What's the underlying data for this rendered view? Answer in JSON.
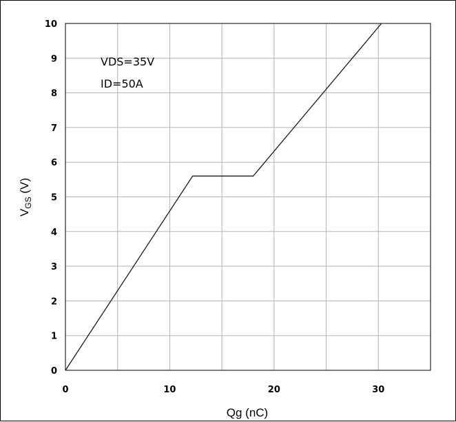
{
  "chart_data": {
    "type": "line",
    "title": "",
    "xlabel": "Qg (nC)",
    "ylabel_main": "V",
    "ylabel_sub": "GS",
    "ylabel_unit": " (V)",
    "xlim": [
      0,
      35
    ],
    "ylim": [
      0,
      10
    ],
    "xticks": [
      0,
      10,
      20,
      30
    ],
    "yticks": [
      0,
      1,
      2,
      3,
      4,
      5,
      6,
      7,
      8,
      9,
      10
    ],
    "x_gridlines": [
      0,
      5,
      10,
      15,
      20,
      25,
      30,
      35
    ],
    "grid": true,
    "annotations": [
      "VDS=35V",
      "ID=50A"
    ],
    "series": [
      {
        "x": [
          0,
          12.2,
          18,
          30.3
        ],
        "y": [
          0,
          5.6,
          5.6,
          10
        ],
        "color": "#1a1a1a"
      }
    ]
  }
}
